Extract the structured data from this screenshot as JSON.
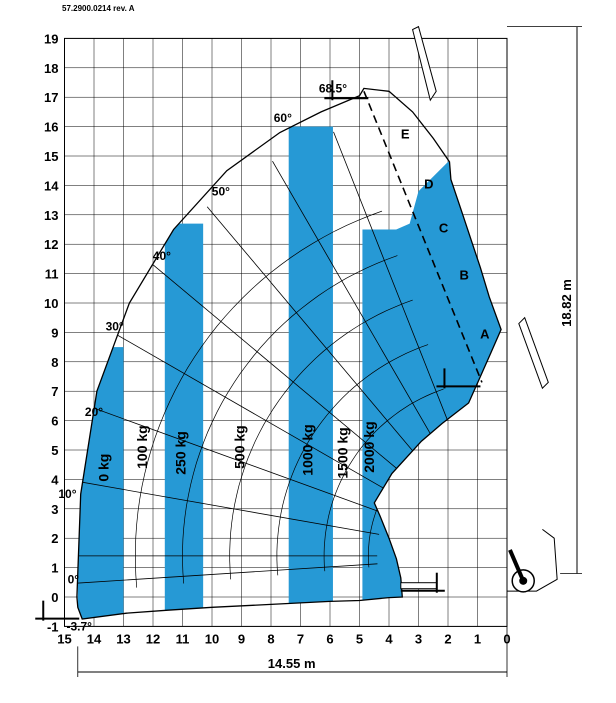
{
  "document_code": "57.2900.0214  rev. A",
  "chart_data": {
    "type": "area",
    "title": "",
    "xlabel": "",
    "ylabel": "",
    "x_axis_reversed": true,
    "xlim": [
      0,
      15
    ],
    "ylim": [
      -1,
      19
    ],
    "grid": true,
    "x_ticks": [
      "15",
      "14",
      "13",
      "12",
      "11",
      "10",
      "9",
      "8",
      "7",
      "6",
      "5",
      "4",
      "3",
      "2",
      "1",
      "0"
    ],
    "y_ticks": [
      "-1",
      "0",
      "1",
      "2",
      "3",
      "4",
      "5",
      "6",
      "7",
      "8",
      "9",
      "10",
      "11",
      "12",
      "13",
      "14",
      "15",
      "16",
      "17",
      "18",
      "19"
    ],
    "dimensions": {
      "horizontal_reach": "14.55  m",
      "max_height": "18.82  m"
    },
    "boom_angles": [
      {
        "label": "-3.7°",
        "angle": -3.7
      },
      {
        "label": "0°",
        "angle": 0
      },
      {
        "label": "10°",
        "angle": 10
      },
      {
        "label": "20°",
        "angle": 20
      },
      {
        "label": "30°",
        "angle": 30
      },
      {
        "label": "40°",
        "angle": 40
      },
      {
        "label": "50°",
        "angle": 50
      },
      {
        "label": "60°",
        "angle": 60
      },
      {
        "label": "68.5°",
        "angle": 68.5
      }
    ],
    "load_zones": [
      {
        "label": "0 kg",
        "x_range": [
          14.55,
          13.0
        ],
        "y_top": 8.5
      },
      {
        "label": "100 kg",
        "x_range": [
          13.0,
          11.6
        ],
        "y_top": 0
      },
      {
        "label": "250 kg",
        "x_range": [
          11.6,
          10.3
        ],
        "y_top": 12.7
      },
      {
        "label": "500 kg",
        "x_range": [
          10.3,
          7.4
        ],
        "y_top": 0
      },
      {
        "label": "1000 kg",
        "x_range": [
          7.4,
          5.9
        ],
        "y_top": 16.0
      },
      {
        "label": "1500 kg",
        "x_range": [
          5.9,
          4.9
        ],
        "y_top": 0
      },
      {
        "label": "2000 kg",
        "x_range": [
          4.9,
          0
        ],
        "y_top": 12.5
      }
    ],
    "extension_labels": [
      "A",
      "B",
      "C",
      "D",
      "E"
    ],
    "colors": {
      "fill": "#2699d5",
      "outline": "#000000",
      "grid": "#000000",
      "background": "#ffffff"
    }
  }
}
